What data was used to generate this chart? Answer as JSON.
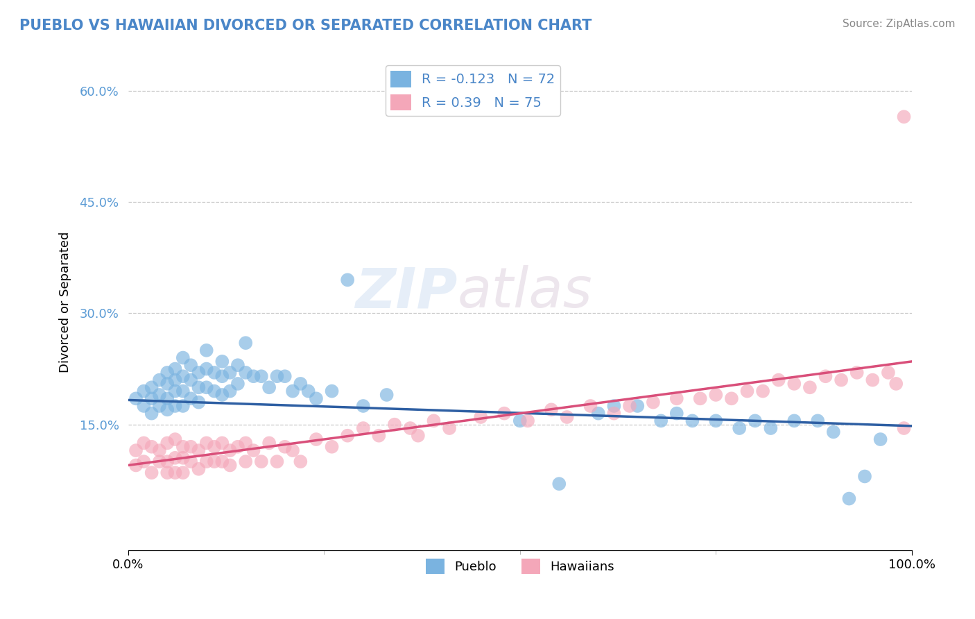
{
  "title": "PUEBLO VS HAWAIIAN DIVORCED OR SEPARATED CORRELATION CHART",
  "source": "Source: ZipAtlas.com",
  "ylabel": "Divorced or Separated",
  "xmin": 0.0,
  "xmax": 1.0,
  "ymin": -0.02,
  "ymax": 0.65,
  "pueblo_R": -0.123,
  "pueblo_N": 72,
  "hawaiian_R": 0.39,
  "hawaiian_N": 75,
  "pueblo_color": "#7ab3e0",
  "hawaiian_color": "#f4a7b9",
  "pueblo_line_color": "#2e5fa3",
  "hawaiian_line_color": "#d94f7a",
  "legend_pueblo_label": "Pueblo",
  "legend_hawaiian_label": "Hawaiians",
  "background_color": "#ffffff",
  "grid_color": "#c8c8c8",
  "title_color": "#4a86c8",
  "watermark_text": "ZIPatlas",
  "pueblo_line_start": 0.183,
  "pueblo_line_end": 0.148,
  "hawaiian_line_start": 0.095,
  "hawaiian_line_end": 0.235,
  "pueblo_x": [
    0.01,
    0.02,
    0.02,
    0.03,
    0.03,
    0.03,
    0.04,
    0.04,
    0.04,
    0.05,
    0.05,
    0.05,
    0.05,
    0.06,
    0.06,
    0.06,
    0.06,
    0.07,
    0.07,
    0.07,
    0.07,
    0.08,
    0.08,
    0.08,
    0.09,
    0.09,
    0.09,
    0.1,
    0.1,
    0.1,
    0.11,
    0.11,
    0.12,
    0.12,
    0.12,
    0.13,
    0.13,
    0.14,
    0.14,
    0.15,
    0.15,
    0.16,
    0.17,
    0.18,
    0.19,
    0.2,
    0.21,
    0.22,
    0.23,
    0.24,
    0.26,
    0.28,
    0.3,
    0.33,
    0.5,
    0.55,
    0.6,
    0.62,
    0.65,
    0.68,
    0.7,
    0.72,
    0.75,
    0.78,
    0.8,
    0.82,
    0.85,
    0.88,
    0.9,
    0.92,
    0.94,
    0.96
  ],
  "pueblo_y": [
    0.185,
    0.195,
    0.175,
    0.2,
    0.185,
    0.165,
    0.21,
    0.19,
    0.175,
    0.22,
    0.205,
    0.185,
    0.17,
    0.225,
    0.21,
    0.195,
    0.175,
    0.24,
    0.215,
    0.195,
    0.175,
    0.23,
    0.21,
    0.185,
    0.22,
    0.2,
    0.18,
    0.25,
    0.225,
    0.2,
    0.22,
    0.195,
    0.235,
    0.215,
    0.19,
    0.22,
    0.195,
    0.23,
    0.205,
    0.26,
    0.22,
    0.215,
    0.215,
    0.2,
    0.215,
    0.215,
    0.195,
    0.205,
    0.195,
    0.185,
    0.195,
    0.345,
    0.175,
    0.19,
    0.155,
    0.07,
    0.165,
    0.175,
    0.175,
    0.155,
    0.165,
    0.155,
    0.155,
    0.145,
    0.155,
    0.145,
    0.155,
    0.155,
    0.14,
    0.05,
    0.08,
    0.13
  ],
  "hawaiian_x": [
    0.01,
    0.01,
    0.02,
    0.02,
    0.03,
    0.03,
    0.04,
    0.04,
    0.05,
    0.05,
    0.05,
    0.06,
    0.06,
    0.06,
    0.07,
    0.07,
    0.07,
    0.08,
    0.08,
    0.09,
    0.09,
    0.1,
    0.1,
    0.11,
    0.11,
    0.12,
    0.12,
    0.13,
    0.13,
    0.14,
    0.15,
    0.15,
    0.16,
    0.17,
    0.18,
    0.19,
    0.2,
    0.21,
    0.22,
    0.24,
    0.26,
    0.28,
    0.3,
    0.32,
    0.34,
    0.36,
    0.37,
    0.39,
    0.41,
    0.45,
    0.48,
    0.51,
    0.54,
    0.56,
    0.59,
    0.62,
    0.64,
    0.67,
    0.7,
    0.73,
    0.75,
    0.77,
    0.79,
    0.81,
    0.83,
    0.85,
    0.87,
    0.89,
    0.91,
    0.93,
    0.95,
    0.97,
    0.98,
    0.99,
    0.99
  ],
  "hawaiian_y": [
    0.115,
    0.095,
    0.125,
    0.1,
    0.12,
    0.085,
    0.115,
    0.1,
    0.125,
    0.1,
    0.085,
    0.13,
    0.105,
    0.085,
    0.12,
    0.105,
    0.085,
    0.12,
    0.1,
    0.115,
    0.09,
    0.125,
    0.1,
    0.12,
    0.1,
    0.125,
    0.1,
    0.115,
    0.095,
    0.12,
    0.125,
    0.1,
    0.115,
    0.1,
    0.125,
    0.1,
    0.12,
    0.115,
    0.1,
    0.13,
    0.12,
    0.135,
    0.145,
    0.135,
    0.15,
    0.145,
    0.135,
    0.155,
    0.145,
    0.16,
    0.165,
    0.155,
    0.17,
    0.16,
    0.175,
    0.165,
    0.175,
    0.18,
    0.185,
    0.185,
    0.19,
    0.185,
    0.195,
    0.195,
    0.21,
    0.205,
    0.2,
    0.215,
    0.21,
    0.22,
    0.21,
    0.22,
    0.205,
    0.565,
    0.145
  ]
}
